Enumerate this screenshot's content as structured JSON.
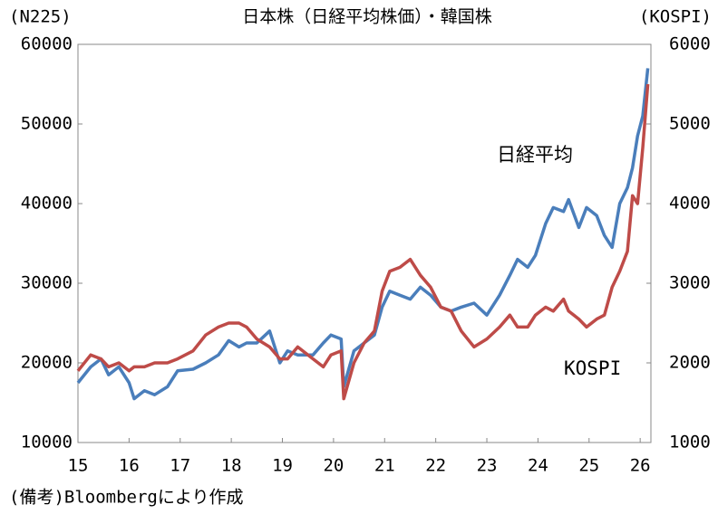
{
  "chart_data": {
    "type": "line",
    "title": "日本株（日経平均株価）・韓国株",
    "y_label": "(N225)",
    "y2_label": "(KOSPI)",
    "note": "(備考)Bloombergにより作成",
    "annotations": [
      {
        "text": "日経平均",
        "color": "#4a7ebb"
      },
      {
        "text": "KOSPI",
        "color": "#be4b48"
      }
    ],
    "x": [
      15,
      15.25,
      15.45,
      15.6,
      15.8,
      16,
      16.1,
      16.3,
      16.5,
      16.75,
      16.95,
      17.25,
      17.5,
      17.75,
      17.95,
      18.15,
      18.3,
      18.5,
      18.75,
      18.95,
      19.1,
      19.3,
      19.6,
      19.8,
      19.95,
      20.15,
      20.2,
      20.4,
      20.6,
      20.8,
      20.95,
      21.1,
      21.3,
      21.5,
      21.7,
      21.9,
      22.1,
      22.3,
      22.5,
      22.75,
      23,
      23.25,
      23.45,
      23.6,
      23.8,
      23.95,
      24.15,
      24.3,
      24.5,
      24.6,
      24.8,
      24.95,
      25.15,
      25.3,
      25.45,
      25.6,
      25.75,
      25.85,
      25.95,
      26.05,
      26.15
    ],
    "series": [
      {
        "name": "日経平均",
        "color": "#4a7ebb",
        "values": [
          17500,
          19500,
          20500,
          18500,
          19500,
          17500,
          15500,
          16500,
          16000,
          17000,
          19000,
          19200,
          20000,
          21000,
          22800,
          22000,
          22500,
          22500,
          24000,
          20000,
          21500,
          21000,
          21000,
          22500,
          23500,
          23000,
          17000,
          21500,
          22500,
          23500,
          27000,
          29000,
          28500,
          28000,
          29500,
          28500,
          27000,
          26500,
          27000,
          27500,
          26000,
          28500,
          31000,
          33000,
          32000,
          33500,
          37500,
          39500,
          39000,
          40500,
          37000,
          39500,
          38500,
          36000,
          34500,
          40000,
          42000,
          44500,
          48500,
          51000,
          57000
        ]
      },
      {
        "name": "KOSPI",
        "color": "#be4b48",
        "axis": "y2",
        "values": [
          1900,
          2100,
          2050,
          1950,
          2000,
          1900,
          1950,
          1950,
          2000,
          2000,
          2050,
          2150,
          2350,
          2450,
          2500,
          2500,
          2450,
          2300,
          2200,
          2050,
          2050,
          2200,
          2050,
          1950,
          2100,
          2150,
          1550,
          2000,
          2250,
          2400,
          2900,
          3150,
          3200,
          3300,
          3100,
          2950,
          2700,
          2650,
          2400,
          2200,
          2300,
          2450,
          2600,
          2450,
          2450,
          2600,
          2700,
          2650,
          2800,
          2650,
          2550,
          2450,
          2550,
          2600,
          2950,
          3150,
          3400,
          4100,
          4000,
          4700,
          5500
        ]
      }
    ],
    "xlim": [
      15,
      26.21
    ],
    "xticks": [
      15,
      16,
      17,
      18,
      19,
      20,
      21,
      22,
      23,
      24,
      25,
      26
    ],
    "ylim": [
      10000,
      60000
    ],
    "yticks": [
      10000,
      20000,
      30000,
      40000,
      50000,
      60000
    ],
    "y2lim": [
      1000,
      6000
    ],
    "y2ticks": [
      1000,
      2000,
      3000,
      4000,
      5000,
      6000
    ],
    "grid": false
  }
}
